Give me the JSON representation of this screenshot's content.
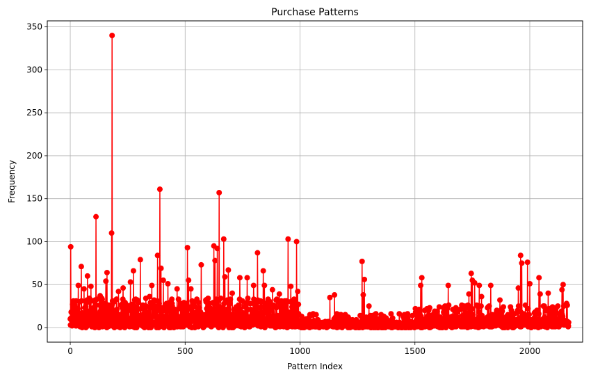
{
  "chart_data": {
    "type": "line",
    "title": "Purchase Patterns",
    "xlabel": "Pattern Index",
    "ylabel": "Frequency",
    "xlim": [
      -100,
      2230
    ],
    "ylim": [
      -17,
      357
    ],
    "xticks": [
      0,
      500,
      1000,
      1500,
      2000
    ],
    "yticks": [
      0,
      50,
      100,
      150,
      200,
      250,
      300,
      350
    ],
    "grid": true,
    "line_color": "#ff0000",
    "marker": "circle",
    "x_count": 2170,
    "highlighted_points": [
      {
        "x": 0,
        "y": 10
      },
      {
        "x": 2,
        "y": 94
      },
      {
        "x": 5,
        "y": 3
      },
      {
        "x": 20,
        "y": 26
      },
      {
        "x": 35,
        "y": 49
      },
      {
        "x": 48,
        "y": 71
      },
      {
        "x": 60,
        "y": 45
      },
      {
        "x": 75,
        "y": 60
      },
      {
        "x": 90,
        "y": 48
      },
      {
        "x": 112,
        "y": 129
      },
      {
        "x": 130,
        "y": 37
      },
      {
        "x": 155,
        "y": 54
      },
      {
        "x": 160,
        "y": 64
      },
      {
        "x": 180,
        "y": 110
      },
      {
        "x": 182,
        "y": 340
      },
      {
        "x": 210,
        "y": 42
      },
      {
        "x": 230,
        "y": 46
      },
      {
        "x": 262,
        "y": 53
      },
      {
        "x": 275,
        "y": 66
      },
      {
        "x": 305,
        "y": 79
      },
      {
        "x": 345,
        "y": 36
      },
      {
        "x": 355,
        "y": 49
      },
      {
        "x": 380,
        "y": 84
      },
      {
        "x": 390,
        "y": 161
      },
      {
        "x": 395,
        "y": 69
      },
      {
        "x": 405,
        "y": 55
      },
      {
        "x": 425,
        "y": 51
      },
      {
        "x": 465,
        "y": 45
      },
      {
        "x": 510,
        "y": 93
      },
      {
        "x": 515,
        "y": 55
      },
      {
        "x": 525,
        "y": 45
      },
      {
        "x": 570,
        "y": 73
      },
      {
        "x": 625,
        "y": 95
      },
      {
        "x": 630,
        "y": 78
      },
      {
        "x": 640,
        "y": 92
      },
      {
        "x": 648,
        "y": 157
      },
      {
        "x": 668,
        "y": 103
      },
      {
        "x": 673,
        "y": 59
      },
      {
        "x": 688,
        "y": 67
      },
      {
        "x": 705,
        "y": 40
      },
      {
        "x": 738,
        "y": 58
      },
      {
        "x": 770,
        "y": 58
      },
      {
        "x": 798,
        "y": 49
      },
      {
        "x": 815,
        "y": 87
      },
      {
        "x": 840,
        "y": 66
      },
      {
        "x": 845,
        "y": 49
      },
      {
        "x": 880,
        "y": 44
      },
      {
        "x": 910,
        "y": 39
      },
      {
        "x": 948,
        "y": 103
      },
      {
        "x": 960,
        "y": 48
      },
      {
        "x": 985,
        "y": 100
      },
      {
        "x": 990,
        "y": 42
      },
      {
        "x": 1130,
        "y": 35
      },
      {
        "x": 1150,
        "y": 38
      },
      {
        "x": 1270,
        "y": 77
      },
      {
        "x": 1280,
        "y": 56
      },
      {
        "x": 1275,
        "y": 38
      },
      {
        "x": 1300,
        "y": 25
      },
      {
        "x": 1525,
        "y": 49
      },
      {
        "x": 1530,
        "y": 58
      },
      {
        "x": 1645,
        "y": 49
      },
      {
        "x": 1735,
        "y": 39
      },
      {
        "x": 1745,
        "y": 63
      },
      {
        "x": 1750,
        "y": 55
      },
      {
        "x": 1760,
        "y": 52
      },
      {
        "x": 1780,
        "y": 49
      },
      {
        "x": 1790,
        "y": 36
      },
      {
        "x": 1830,
        "y": 49
      },
      {
        "x": 1870,
        "y": 32
      },
      {
        "x": 1950,
        "y": 46
      },
      {
        "x": 1960,
        "y": 84
      },
      {
        "x": 1965,
        "y": 75
      },
      {
        "x": 1990,
        "y": 76
      },
      {
        "x": 2000,
        "y": 51
      },
      {
        "x": 2040,
        "y": 58
      },
      {
        "x": 2045,
        "y": 39
      },
      {
        "x": 2080,
        "y": 40
      },
      {
        "x": 2140,
        "y": 44
      },
      {
        "x": 2145,
        "y": 50
      },
      {
        "x": 2160,
        "y": 28
      },
      {
        "x": 2165,
        "y": 3
      }
    ]
  }
}
